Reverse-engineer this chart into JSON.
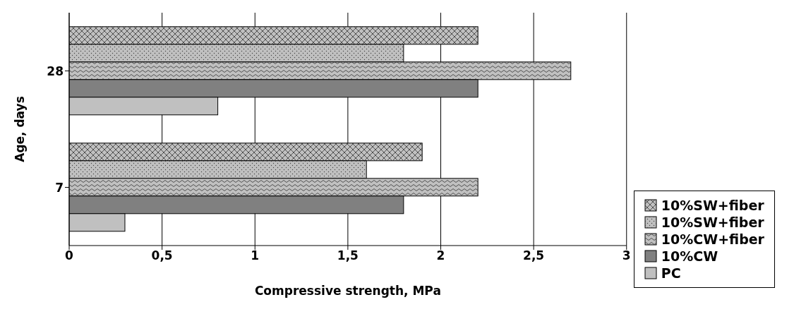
{
  "chart_data": {
    "type": "bar",
    "orientation": "horizontal",
    "xlabel": "Compressive strength, MPa",
    "ylabel": "Age, days",
    "categories": [
      "28",
      "7"
    ],
    "series": [
      {
        "name": "10%SW+fiber",
        "color": "#c0c0c0",
        "values": [
          2.2,
          1.9
        ]
      },
      {
        "name": "10%SW+fiber",
        "color": "#c0c0c0",
        "values": [
          1.8,
          1.6
        ]
      },
      {
        "name": "10%CW+fiber",
        "color": "#c0c0c0",
        "values": [
          2.7,
          2.2
        ]
      },
      {
        "name": "10%CW",
        "color": "#808080",
        "values": [
          2.2,
          1.8
        ]
      },
      {
        "name": "PC",
        "color": "#c0c0c0",
        "values": [
          0.8,
          0.3
        ]
      }
    ],
    "xlim": [
      0,
      3
    ],
    "xticks": [
      0,
      {
        "value": 0.5,
        "label": "0,5"
      },
      1,
      {
        "value": 1.5,
        "label": "1,5"
      },
      2,
      {
        "value": 2.5,
        "label": "2,5"
      },
      3
    ],
    "grid": "x",
    "legend": "bottom right"
  }
}
